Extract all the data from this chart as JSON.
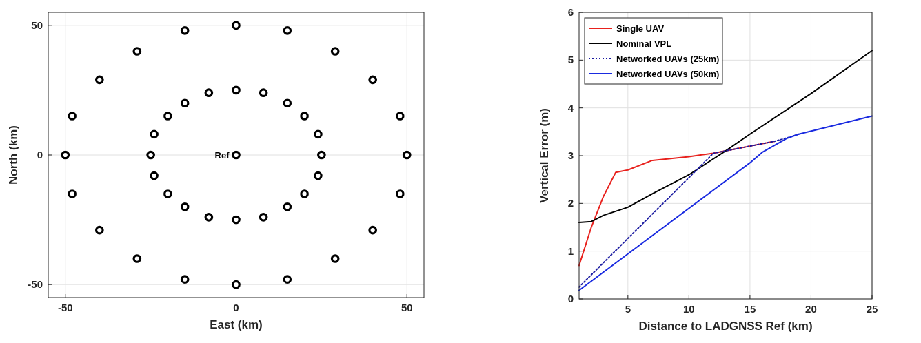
{
  "chart_data": [
    {
      "type": "scatter",
      "xlabel": "East (km)",
      "ylabel": "North (km)",
      "xlim": [
        -55,
        55
      ],
      "ylim": [
        -55,
        55
      ],
      "xticks": [
        -50,
        0,
        50
      ],
      "yticks": [
        -50,
        0,
        50
      ],
      "grid": true,
      "legend": false,
      "marker": "circle",
      "annotations": [
        {
          "text": "Ref",
          "x": 0,
          "y": 0
        }
      ],
      "series": [
        {
          "color": "#000000",
          "x": [
            50,
            48,
            40,
            29,
            15,
            0,
            -15,
            -29,
            -40,
            -48,
            -50,
            -48,
            -40,
            -29,
            -15,
            0,
            15,
            29,
            40,
            48,
            25,
            24,
            20,
            15,
            8,
            0,
            -8,
            -15,
            -20,
            -24,
            -25,
            -24,
            -20,
            -15,
            -8,
            0,
            8,
            15,
            20,
            24
          ],
          "values": [
            0,
            15,
            29,
            40,
            48,
            50,
            48,
            40,
            29,
            15,
            0,
            -15,
            -29,
            -40,
            -48,
            -50,
            -48,
            -40,
            -29,
            -15,
            0,
            8,
            15,
            20,
            24,
            25,
            24,
            20,
            15,
            8,
            0,
            -8,
            -15,
            -20,
            -24,
            -25,
            -24,
            -20,
            -15,
            -8
          ]
        },
        {
          "color": "#000000",
          "x": [
            0
          ],
          "values": [
            0
          ]
        }
      ]
    },
    {
      "type": "line",
      "xlabel": "Distance to LADGNSS Ref (km)",
      "ylabel": "Vertical Error (m)",
      "xlim": [
        1,
        25
      ],
      "ylim": [
        0,
        6
      ],
      "xticks": [
        5,
        10,
        15,
        20,
        25
      ],
      "yticks": [
        0,
        1,
        2,
        3,
        4,
        5,
        6
      ],
      "grid": true,
      "legend": "top left",
      "marker": "none",
      "series": [
        {
          "name": "Single UAV",
          "color": "#e8211d",
          "line_style": "solid",
          "x": [
            1,
            2,
            3,
            4,
            5,
            7,
            10,
            12,
            13,
            15,
            17
          ],
          "values": [
            0.7,
            1.5,
            2.15,
            2.65,
            2.7,
            2.9,
            2.98,
            3.05,
            3.1,
            3.2,
            3.3
          ]
        },
        {
          "name": "Nominal VPL",
          "color": "#000000",
          "line_style": "solid",
          "x": [
            1,
            2,
            3,
            5,
            7,
            10,
            13,
            15,
            20,
            25
          ],
          "values": [
            1.6,
            1.62,
            1.75,
            1.92,
            2.2,
            2.6,
            3.1,
            3.45,
            4.3,
            5.2
          ]
        },
        {
          "name": "Networked UAVs (25km)",
          "color": "#1a1aa0",
          "line_style": "dotted",
          "x": [
            1,
            12,
            13,
            15,
            17,
            18,
            19
          ],
          "values": [
            0.25,
            3.05,
            3.1,
            3.2,
            3.3,
            3.37,
            3.45
          ]
        },
        {
          "name": "Networked UAVs (50km)",
          "color": "#1a2be0",
          "line_style": "solid",
          "x": [
            1,
            15,
            16,
            18,
            19,
            25
          ],
          "values": [
            0.18,
            2.85,
            3.07,
            3.36,
            3.45,
            3.83
          ]
        }
      ]
    }
  ]
}
